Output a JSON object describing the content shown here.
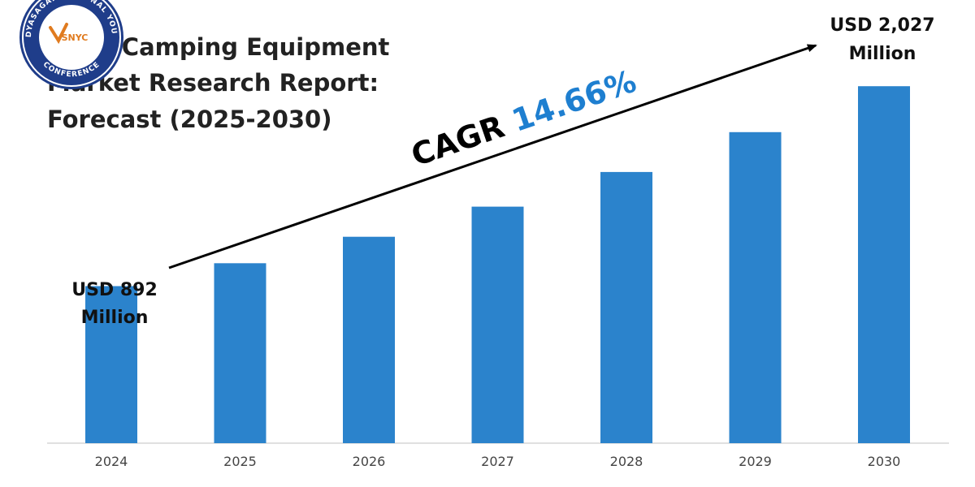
{
  "logo": {
    "ring_text": "VIDYASAGAR NATIONAL YOUTH",
    "ring_text_bottom": "CONFERENCE",
    "core_text": "SNYC",
    "ring_color": "#1f3d8a"
  },
  "chart_data": {
    "type": "bar",
    "title_lines": [
      "India Camping Equipment",
      "Market Research Report:",
      "Forecast (2025-2030)"
    ],
    "categories": [
      "2024",
      "2025",
      "2026",
      "2027",
      "2028",
      "2029",
      "2030"
    ],
    "values": [
      892,
      1022,
      1172,
      1343,
      1540,
      1766,
      2027
    ],
    "ylim": [
      0,
      2240
    ],
    "xlabel": "",
    "ylabel": "",
    "grid": false,
    "bar_color": "#2b83cc",
    "annotations": {
      "start_label": [
        "USD 892",
        "Million"
      ],
      "end_label": [
        "USD 2,027",
        "Million"
      ],
      "cagr_prefix": "CAGR",
      "cagr_value": "14.66%",
      "cagr_value_color": "#1e7fd0"
    }
  }
}
